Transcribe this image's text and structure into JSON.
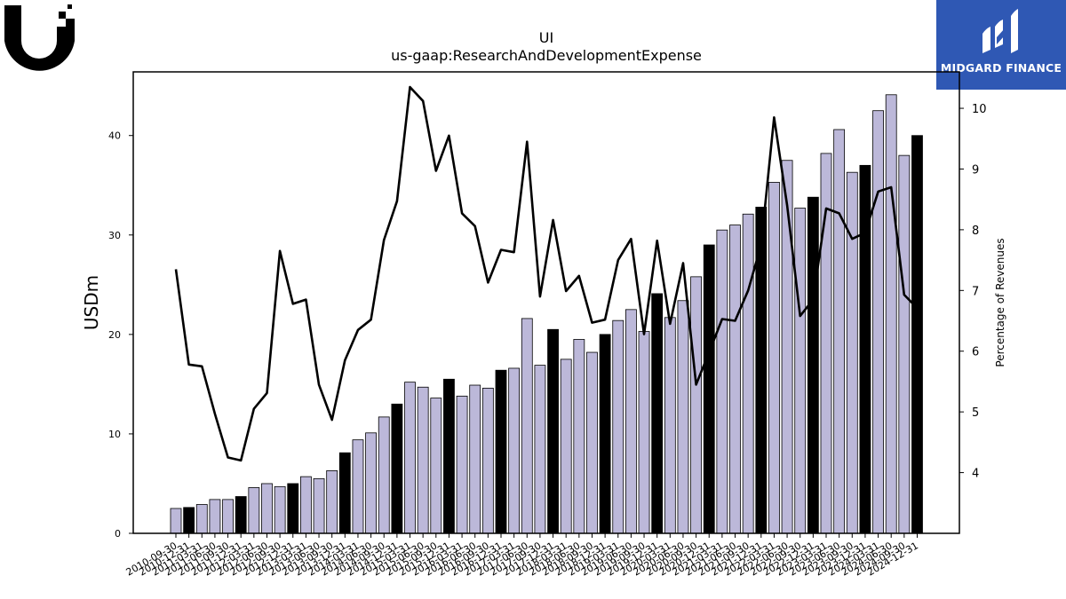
{
  "header": {
    "title": "UI",
    "subtitle": "us-gaap:ResearchAndDevelopmentExpense"
  },
  "brand": {
    "name": "MIDGARD FINANCE",
    "color": "#2f58b4"
  },
  "colors": {
    "bar_default": "#bcb8d9",
    "bar_annual": "#000000",
    "line": "#000000"
  },
  "chart_data": {
    "type": "bar",
    "categories": [
      "2010-09-30",
      "2010-12-31",
      "2011-03-31",
      "2011-06-30",
      "2011-09-30",
      "2011-12-31",
      "2012-03-31",
      "2012-06-30",
      "2012-09-30",
      "2012-12-31",
      "2013-03-31",
      "2013-06-30",
      "2013-09-30",
      "2013-12-31",
      "2014-03-31",
      "2014-06-30",
      "2014-09-30",
      "2014-12-31",
      "2015-03-31",
      "2015-06-30",
      "2015-09-30",
      "2015-12-31",
      "2016-03-31",
      "2016-06-30",
      "2016-09-30",
      "2016-12-31",
      "2017-03-31",
      "2017-06-30",
      "2017-09-30",
      "2017-12-31",
      "2018-03-31",
      "2018-06-30",
      "2018-09-30",
      "2018-12-31",
      "2019-03-31",
      "2019-06-30",
      "2019-09-30",
      "2019-12-31",
      "2020-03-31",
      "2020-06-30",
      "2020-09-30",
      "2020-12-31",
      "2021-03-31",
      "2021-06-30",
      "2021-09-30",
      "2021-12-31",
      "2022-03-31",
      "2022-06-30",
      "2022-09-30",
      "2022-12-31",
      "2023-03-31",
      "2023-06-30",
      "2023-09-30",
      "2023-12-31",
      "2024-03-31",
      "2024-06-30",
      "2024-09-30",
      "2024-12-31"
    ],
    "series": [
      {
        "type": "bar",
        "axis": "left",
        "values": [
          2.5,
          2.6,
          2.9,
          3.4,
          3.4,
          3.7,
          4.6,
          5.0,
          4.7,
          5.0,
          5.7,
          5.5,
          6.3,
          8.1,
          9.4,
          10.1,
          11.7,
          13.0,
          15.2,
          14.7,
          13.6,
          15.5,
          13.8,
          14.9,
          14.6,
          16.4,
          16.6,
          21.6,
          16.9,
          20.5,
          17.5,
          19.5,
          18.2,
          20.0,
          21.4,
          22.5,
          20.3,
          24.1,
          21.7,
          23.4,
          25.8,
          29.0,
          30.5,
          31.0,
          32.1,
          32.8,
          35.3,
          37.5,
          32.7,
          33.8,
          38.2,
          40.6,
          36.3,
          37.0,
          42.5,
          44.1,
          38.0,
          40.0
        ],
        "annual": [
          false,
          true,
          false,
          false,
          false,
          true,
          false,
          false,
          false,
          true,
          false,
          false,
          false,
          true,
          false,
          false,
          false,
          true,
          false,
          false,
          false,
          true,
          false,
          false,
          false,
          true,
          false,
          false,
          false,
          true,
          false,
          false,
          false,
          true,
          false,
          false,
          false,
          true,
          false,
          false,
          false,
          true,
          false,
          false,
          false,
          true,
          false,
          false,
          false,
          true,
          false,
          false,
          false,
          true,
          false,
          false,
          false,
          true
        ]
      },
      {
        "type": "line",
        "axis": "right",
        "values": [
          7.35,
          5.78,
          5.75,
          4.97,
          4.25,
          4.2,
          5.05,
          5.31,
          7.65,
          6.78,
          6.85,
          5.45,
          4.87,
          5.85,
          6.35,
          6.52,
          7.83,
          8.47,
          10.35,
          10.12,
          8.97,
          9.55,
          8.27,
          8.06,
          7.13,
          7.67,
          7.63,
          9.45,
          6.9,
          8.16,
          6.99,
          7.24,
          6.47,
          6.52,
          7.5,
          7.85,
          6.28,
          7.82,
          6.45,
          7.45,
          5.45,
          5.98,
          6.53,
          6.5,
          7.0,
          7.75,
          9.85,
          8.4,
          6.58,
          6.85,
          8.35,
          8.27,
          7.85,
          7.95,
          8.63,
          8.7,
          6.93,
          6.71
        ]
      }
    ],
    "xlabel": "",
    "ylabel": "USDm",
    "y2label": "Percentage of Revenues",
    "ylim": [
      0,
      46.4
    ],
    "y2lim": [
      3.0,
      10.6
    ],
    "yticks": [
      0,
      10,
      20,
      30,
      40
    ],
    "y2ticks": [
      4,
      5,
      6,
      7,
      8,
      9,
      10
    ],
    "grid": false
  }
}
